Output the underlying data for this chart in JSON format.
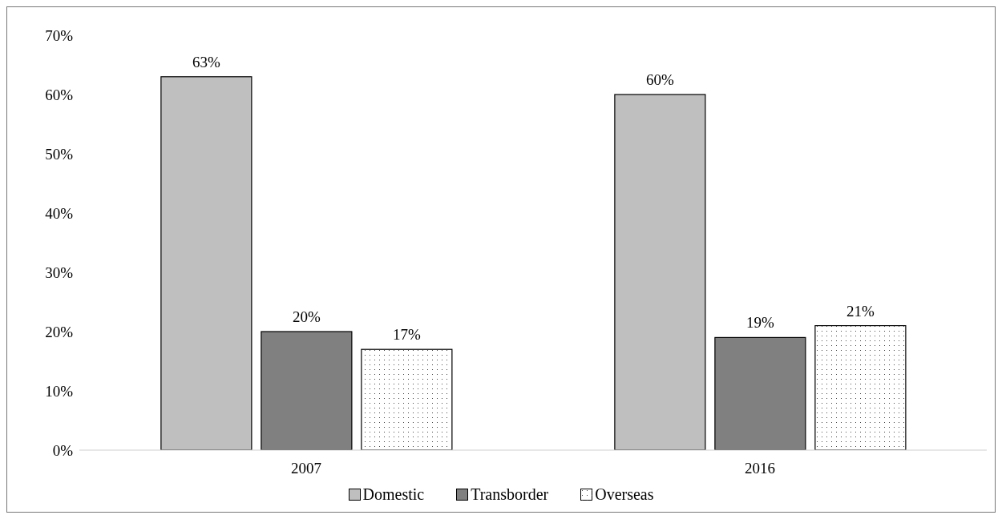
{
  "chart_data": {
    "type": "bar",
    "categories": [
      "2007",
      "2016"
    ],
    "series": [
      {
        "name": "Domestic",
        "color": "#bfbfbf",
        "values": [
          63,
          60
        ],
        "value_labels": [
          "63%",
          "60%"
        ]
      },
      {
        "name": "Transborder",
        "color": "#808080",
        "values": [
          20,
          19
        ],
        "value_labels": [
          "20%",
          "19%"
        ]
      },
      {
        "name": "Overseas",
        "color": "#ffffff",
        "values": [
          17,
          21
        ],
        "value_labels": [
          "17%",
          "21%"
        ]
      }
    ],
    "ylim": [
      0,
      70
    ],
    "yticks": [
      {
        "value": 0,
        "label": "0%"
      },
      {
        "value": 10,
        "label": "10%"
      },
      {
        "value": 20,
        "label": "20%"
      },
      {
        "value": 30,
        "label": "30%"
      },
      {
        "value": 40,
        "label": "40%"
      },
      {
        "value": 50,
        "label": "50%"
      },
      {
        "value": 60,
        "label": "60%"
      },
      {
        "value": 70,
        "label": "70%"
      }
    ],
    "grid": false,
    "legend": "bottom"
  }
}
